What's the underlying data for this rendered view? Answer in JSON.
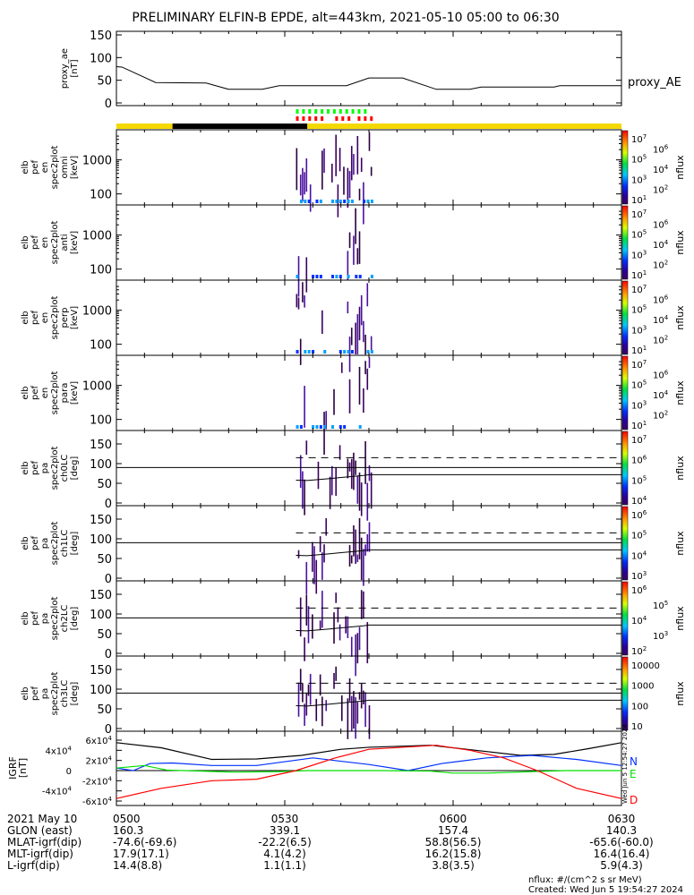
{
  "title": "PRELIMINARY ELFIN-B EPDE, alt=443km, 2021-05-10 05:00 to 06:30",
  "time_axis": {
    "start_min": 0,
    "end_min": 90,
    "labels": [
      {
        "t": 0,
        "text": "0500"
      },
      {
        "t": 30,
        "text": "0530"
      },
      {
        "t": 60,
        "text": "0600"
      },
      {
        "t": 90,
        "text": "0630"
      }
    ]
  },
  "footer": {
    "rows": [
      {
        "label": "2021 May 10",
        "values": [
          "0500",
          "0530",
          "0600",
          "0630"
        ]
      },
      {
        "label": "GLON (east)",
        "values": [
          "160.3",
          "339.1",
          "157.4",
          "140.3"
        ]
      },
      {
        "label": "MLAT-igrf(dip)",
        "values": [
          "-74.6(-69.6)",
          "-22.2(6.5)",
          "58.8(56.5)",
          "-65.6(-60.0)"
        ]
      },
      {
        "label": "MLT-igrf(dip)",
        "values": [
          "17.9(17.1)",
          "4.1(4.2)",
          "16.2(15.8)",
          "16.4(16.4)"
        ]
      },
      {
        "label": "L-igrf(dip)",
        "values": [
          "14.4(8.8)",
          "1.1(1.1)",
          "3.8(3.5)",
          "5.9(4.3)"
        ]
      }
    ],
    "units_note": "nflux: #/(cm^2 s sr MeV)",
    "created": "Created: Wed Jun  5 19:54:27 2024",
    "side_stamp": "Wed Jun  5 12:54:27 2024"
  },
  "chart_data": [
    {
      "type": "line",
      "name": "proxy_ae",
      "ylabel": [
        "proxy_ae",
        "[nT]"
      ],
      "legend": "proxy_AE",
      "ylim": [
        0,
        155
      ],
      "yticks": [
        "0",
        "50",
        "100",
        "150"
      ],
      "x": [
        0,
        1,
        4,
        7,
        16,
        20,
        26,
        29,
        41,
        45,
        51,
        57,
        63,
        65,
        78,
        79,
        90
      ],
      "values": [
        80,
        79,
        62,
        45,
        44,
        30,
        30,
        38,
        38,
        55,
        55,
        30,
        30,
        35,
        35,
        38,
        38
      ]
    },
    {
      "type": "bar",
      "name": "science-zone-indicators",
      "green_segments_min": [
        32,
        44.5
      ],
      "red_segments_min": [
        [
          32,
          36.5
        ],
        [
          39,
          41.5
        ],
        [
          43,
          46
        ]
      ],
      "sunlight_bar": {
        "yellow": "#f5d800",
        "black_range_min": [
          10,
          34
        ]
      }
    },
    {
      "type": "heatmap",
      "name": "spec-omni",
      "ylabel": [
        "elb",
        "pef",
        "en",
        "spec2plot",
        "omni",
        "[keV]"
      ],
      "yscale": "log",
      "ylim": [
        60,
        6000
      ],
      "yticks": [
        "100",
        "1000"
      ],
      "colorbar": {
        "label": "nflux",
        "ticks": [
          "10^1",
          "10^2",
          "10^3",
          "10^4",
          "10^5",
          "10^6",
          "10^7"
        ]
      }
    },
    {
      "type": "heatmap",
      "name": "spec-anti",
      "ylabel": [
        "elb",
        "pef",
        "en",
        "spec2plot",
        "anti",
        "[keV]"
      ],
      "yscale": "log",
      "ylim": [
        60,
        6000
      ],
      "yticks": [
        "100",
        "1000"
      ],
      "colorbar": {
        "label": "nflux",
        "ticks": [
          "10^1",
          "10^2",
          "10^3",
          "10^4",
          "10^5",
          "10^6",
          "10^7"
        ]
      }
    },
    {
      "type": "heatmap",
      "name": "spec-perp",
      "ylabel": [
        "elb",
        "pef",
        "en",
        "spec2plot",
        "perp",
        "[keV]"
      ],
      "yscale": "log",
      "ylim": [
        60,
        6000
      ],
      "yticks": [
        "100",
        "1000"
      ],
      "colorbar": {
        "label": "nflux",
        "ticks": [
          "10^1",
          "10^2",
          "10^3",
          "10^4",
          "10^5",
          "10^6",
          "10^7"
        ]
      }
    },
    {
      "type": "heatmap",
      "name": "spec-para",
      "ylabel": [
        "elb",
        "pef",
        "en",
        "spec2plot",
        "para",
        "[keV]"
      ],
      "yscale": "log",
      "ylim": [
        60,
        6000
      ],
      "yticks": [
        "100",
        "1000"
      ],
      "colorbar": {
        "label": "nflux",
        "ticks": [
          "10^1",
          "10^2",
          "10^3",
          "10^4",
          "10^5",
          "10^6",
          "10^7"
        ]
      }
    },
    {
      "type": "heatmap",
      "name": "pa-ch0LC",
      "ylabel": [
        "elb",
        "pef",
        "pa",
        "spec2plot",
        "ch0LC",
        "[deg]"
      ],
      "ylim": [
        0,
        180
      ],
      "yticks": [
        "0",
        "50",
        "100",
        "150"
      ],
      "colorbar": {
        "label": "nflux",
        "ticks": [
          "10^4",
          "10^5",
          "10^6",
          "10^7"
        ]
      }
    },
    {
      "type": "heatmap",
      "name": "pa-ch1LC",
      "ylabel": [
        "elb",
        "pef",
        "pa",
        "spec2plot",
        "ch1LC",
        "[deg]"
      ],
      "ylim": [
        0,
        180
      ],
      "yticks": [
        "0",
        "50",
        "100",
        "150"
      ],
      "colorbar": {
        "label": "nflux",
        "ticks": [
          "10^3",
          "10^4",
          "10^5",
          "10^6"
        ]
      }
    },
    {
      "type": "heatmap",
      "name": "pa-ch2LC",
      "ylabel": [
        "elb",
        "pef",
        "pa",
        "spec2plot",
        "ch2LC",
        "[deg]"
      ],
      "ylim": [
        0,
        180
      ],
      "yticks": [
        "0",
        "50",
        "100",
        "150"
      ],
      "colorbar": {
        "label": "nflux",
        "ticks": [
          "10^2",
          "10^3",
          "10^4",
          "10^5",
          "10^6"
        ]
      }
    },
    {
      "type": "heatmap",
      "name": "pa-ch3LC",
      "ylabel": [
        "elb",
        "pef",
        "pa",
        "spec2plot",
        "ch3LC",
        "[deg]"
      ],
      "ylim": [
        0,
        180
      ],
      "yticks": [
        "0",
        "50",
        "100",
        "150"
      ],
      "colorbar": {
        "label": "nflux",
        "ticks": [
          "10",
          "100",
          "1000",
          "10000"
        ]
      }
    },
    {
      "type": "line",
      "name": "IGRF",
      "ylabel": [
        "IGRF",
        "[nT]"
      ],
      "ylim": [
        -65000,
        65000
      ],
      "yticks": [
        "-6x10^4",
        "-4x10^4",
        "-2x10^4",
        "0",
        "2x10^4",
        "4x10^4",
        "6x10^4"
      ],
      "series": [
        {
          "name": "total",
          "legend": "",
          "color": "#000000",
          "x": [
            0,
            8,
            17,
            25,
            33,
            40,
            45,
            56,
            64,
            72,
            78,
            84,
            90
          ],
          "values": [
            55000,
            45000,
            22000,
            23000,
            30000,
            42000,
            46000,
            50000,
            40000,
            30000,
            32000,
            43000,
            55000
          ]
        },
        {
          "name": "N",
          "legend": "N",
          "color": "#0030ff",
          "x": [
            0,
            3,
            6,
            10,
            17,
            25,
            35,
            45,
            52,
            58,
            66,
            74,
            82,
            90
          ],
          "values": [
            5000,
            0,
            14000,
            15000,
            10000,
            10000,
            25000,
            12000,
            0,
            14000,
            25000,
            30000,
            22000,
            10000
          ]
        },
        {
          "name": "E",
          "legend": "E",
          "color": "#00e000",
          "x": [
            0,
            5,
            9,
            12,
            21,
            29,
            34,
            47,
            56,
            60,
            66,
            74,
            80,
            90
          ],
          "values": [
            5000,
            10000,
            1000,
            0,
            -3000,
            -2000,
            0,
            0,
            -1000,
            -5000,
            -5000,
            -2000,
            0,
            0
          ]
        },
        {
          "name": "D",
          "legend": "D",
          "color": "#ff0000",
          "x": [
            0,
            8,
            17,
            25,
            32,
            39,
            45,
            57,
            63,
            69,
            75,
            82,
            90
          ],
          "values": [
            -55000,
            -35000,
            -20000,
            -17000,
            0,
            25000,
            42000,
            50000,
            40000,
            25000,
            0,
            -35000,
            -55000
          ]
        }
      ]
    }
  ]
}
